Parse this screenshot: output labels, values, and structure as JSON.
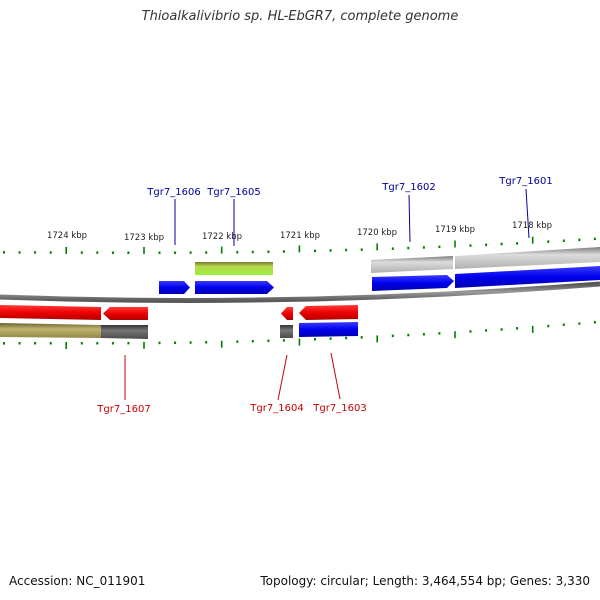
{
  "title": "Thioalkalivibrio sp. HL-EbGR7, complete genome",
  "footer": {
    "accession": "Accession: NC_011901",
    "topology": "Topology: circular; Length: 3,464,554 bp; Genes: 3,330"
  },
  "colors": {
    "forward_cds": "#0000ee",
    "reverse_cds": "#ee0000",
    "forward_label": "#000099",
    "reverse_label": "#cc0000",
    "backbone": "#808080",
    "tick": "#008000",
    "gray_feature": "#a6a6a6",
    "dark_gray_feature": "#555555",
    "olive_feature": "#a89a55",
    "green_feature": "#8ccc33"
  },
  "scale": {
    "labels": [
      {
        "text": "1724 kbp"
      },
      {
        "text": "1723 kbp"
      },
      {
        "text": "1722 kbp"
      },
      {
        "text": "1721 kbp"
      },
      {
        "text": "1720 kbp"
      },
      {
        "text": "1719 kbp"
      },
      {
        "text": "1718 kbp"
      }
    ]
  },
  "genes": [
    {
      "name": "Tgr7_1606",
      "strand": "forward"
    },
    {
      "name": "Tgr7_1605",
      "strand": "forward"
    },
    {
      "name": "Tgr7_1602",
      "strand": "forward"
    },
    {
      "name": "Tgr7_1601",
      "strand": "forward"
    },
    {
      "name": "Tgr7_1607",
      "strand": "reverse"
    },
    {
      "name": "Tgr7_1604",
      "strand": "reverse"
    },
    {
      "name": "Tgr7_1603",
      "strand": "reverse"
    }
  ]
}
